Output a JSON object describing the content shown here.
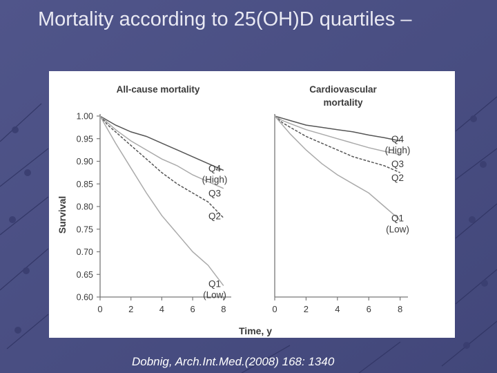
{
  "slide": {
    "title": "Mortality according to 25(OH)D quartiles –",
    "citation": "Dobnig, Arch.Int.Med.(2008) 168: 1340"
  },
  "colors": {
    "background": "#4a4f82",
    "title_text": "#e9e9f3",
    "chart_line": "#555555",
    "chart_line_light": "#aaaaaa"
  },
  "chart_data": [
    {
      "type": "line",
      "title": "All-cause mortality",
      "xlabel": "Time, y",
      "ylabel": "Survival",
      "xlim": [
        0,
        8.5
      ],
      "ylim": [
        0.6,
        1.0
      ],
      "xticks": [
        "0",
        "2",
        "4",
        "6",
        "8"
      ],
      "yticks": [
        "1.00",
        "0.95",
        "0.90",
        "0.85",
        "0.80",
        "0.75",
        "0.70",
        "0.65",
        "0.60"
      ],
      "x": [
        0,
        0.5,
        1,
        2,
        3,
        4,
        5,
        6,
        7,
        8
      ],
      "series": [
        {
          "name": "Q4",
          "label_lines": [
            "Q4",
            "(High)"
          ],
          "style": "dark-solid",
          "values": [
            1.0,
            0.99,
            0.98,
            0.965,
            0.955,
            0.94,
            0.925,
            0.91,
            0.895,
            0.88
          ]
        },
        {
          "name": "Q3",
          "label_lines": [
            "Q3"
          ],
          "style": "light-solid",
          "values": [
            1.0,
            0.985,
            0.97,
            0.945,
            0.925,
            0.905,
            0.89,
            0.87,
            0.855,
            0.84
          ]
        },
        {
          "name": "Q2",
          "label_lines": [
            "Q2"
          ],
          "style": "dark-dashed",
          "values": [
            1.0,
            0.98,
            0.965,
            0.935,
            0.905,
            0.875,
            0.85,
            0.83,
            0.81,
            0.775
          ]
        },
        {
          "name": "Q1",
          "label_lines": [
            "Q1",
            "(Low)"
          ],
          "style": "light-solid",
          "values": [
            1.0,
            0.97,
            0.94,
            0.885,
            0.83,
            0.78,
            0.74,
            0.7,
            0.67,
            0.625
          ]
        }
      ]
    },
    {
      "type": "line",
      "title": "Cardiovascular mortality",
      "title_lines": [
        "Cardiovascular",
        "mortality"
      ],
      "xlabel": "",
      "ylabel": "",
      "xlim": [
        0,
        8.5
      ],
      "ylim": [
        0.6,
        1.0
      ],
      "xticks": [
        "0",
        "2",
        "4",
        "6",
        "8"
      ],
      "yticks": [],
      "x": [
        0,
        0.5,
        1,
        2,
        3,
        4,
        5,
        6,
        7,
        8
      ],
      "series": [
        {
          "name": "Q4",
          "label_lines": [
            "Q4",
            "(High)"
          ],
          "style": "dark-solid",
          "values": [
            1.0,
            0.995,
            0.99,
            0.98,
            0.975,
            0.97,
            0.965,
            0.958,
            0.952,
            0.945
          ]
        },
        {
          "name": "Q3",
          "label_lines": [
            "Q3"
          ],
          "style": "light-solid",
          "values": [
            1.0,
            0.99,
            0.983,
            0.97,
            0.96,
            0.95,
            0.94,
            0.93,
            0.922,
            0.915
          ]
        },
        {
          "name": "Q2",
          "label_lines": [
            "Q2"
          ],
          "style": "dark-dashed",
          "values": [
            1.0,
            0.985,
            0.975,
            0.955,
            0.94,
            0.925,
            0.91,
            0.9,
            0.89,
            0.875
          ]
        },
        {
          "name": "Q1",
          "label_lines": [
            "Q1",
            "(Low)"
          ],
          "style": "light-solid",
          "values": [
            1.0,
            0.98,
            0.96,
            0.925,
            0.895,
            0.87,
            0.85,
            0.83,
            0.8,
            0.77
          ]
        }
      ]
    }
  ]
}
